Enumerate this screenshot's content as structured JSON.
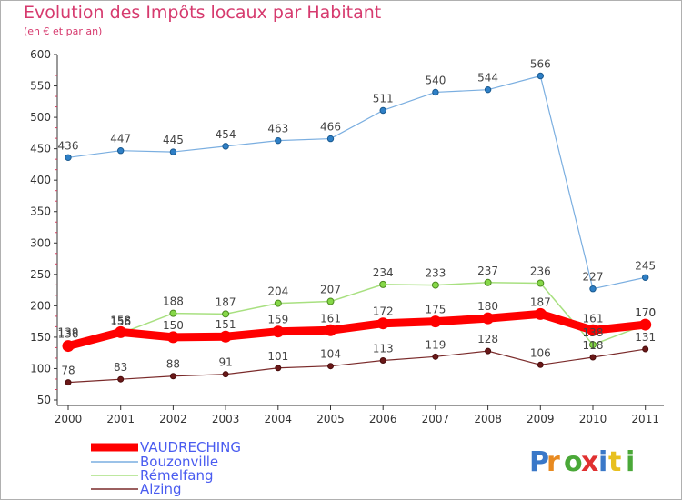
{
  "header": {
    "title": "Evolution des Impôts locaux par Habitant",
    "subtitle": "(en € et par an)"
  },
  "logo": {
    "text": "Proxiti"
  },
  "chart_data": {
    "type": "line",
    "title": "Evolution des Impôts locaux par Habitant",
    "subtitle": "(en € et par an)",
    "xlabel": "",
    "ylabel": "",
    "categories": [
      "2000",
      "2001",
      "2002",
      "2003",
      "2004",
      "2005",
      "2006",
      "2007",
      "2008",
      "2009",
      "2010",
      "2011"
    ],
    "ylim": [
      50,
      600
    ],
    "yticks": [
      50,
      100,
      150,
      200,
      250,
      300,
      350,
      400,
      450,
      500,
      550,
      600
    ],
    "grid": false,
    "legend_position": "bottom-left",
    "series": [
      {
        "name": "VAUDRECHING",
        "color": "#ff0000",
        "values": [
          136,
          158,
          150,
          151,
          159,
          161,
          172,
          175,
          180,
          187,
          161,
          170
        ]
      },
      {
        "name": "Bouzonville",
        "color": "#4a90d0",
        "values": [
          436,
          447,
          445,
          454,
          463,
          466,
          511,
          540,
          544,
          566,
          227,
          245
        ]
      },
      {
        "name": "Rémelfang",
        "color": "#8ad850",
        "values": [
          139,
          156,
          188,
          187,
          204,
          207,
          234,
          233,
          237,
          236,
          138,
          170
        ]
      },
      {
        "name": "Alzing",
        "color": "#7a1e1e",
        "values": [
          78,
          83,
          88,
          91,
          101,
          104,
          113,
          119,
          128,
          106,
          118,
          131
        ]
      }
    ]
  }
}
